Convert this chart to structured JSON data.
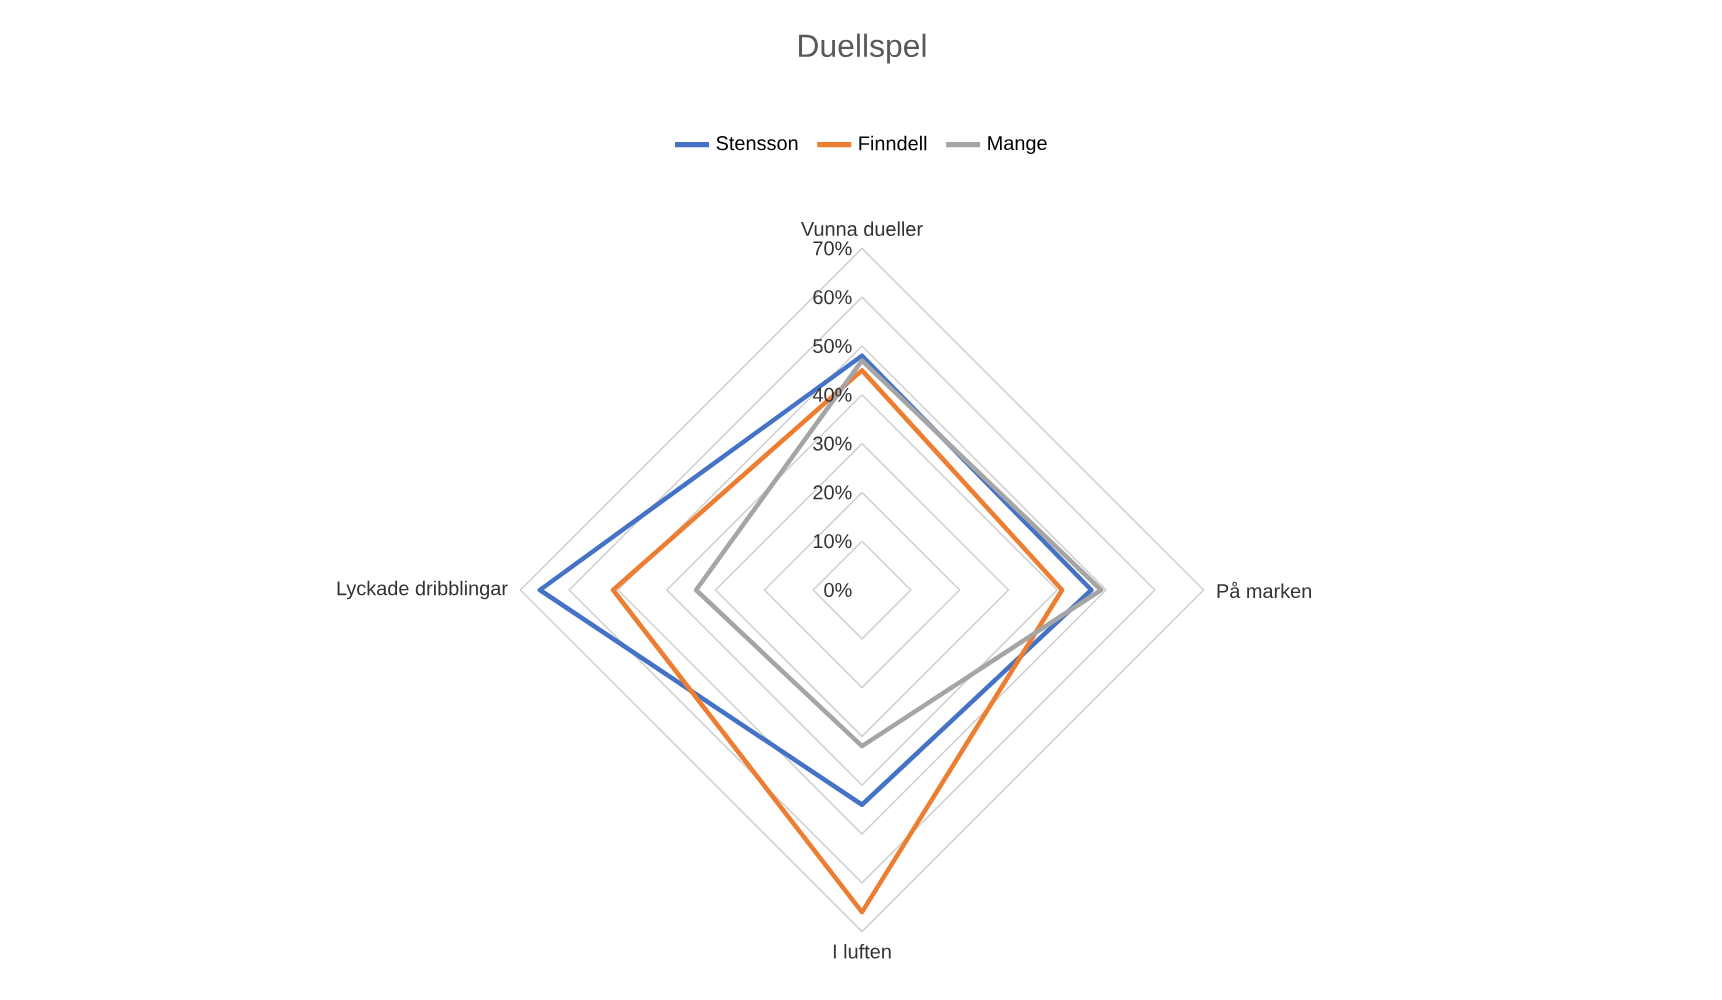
{
  "chart_data": {
    "type": "radar",
    "title": "Duellspel",
    "categories": [
      "Vunna dueller",
      "På marken",
      "I luften",
      "Lyckade dribblingar"
    ],
    "series": [
      {
        "name": "Stensson",
        "color": "#4472c4",
        "values": [
          48,
          47,
          44,
          66
        ]
      },
      {
        "name": "Finndell",
        "color": "#ed7d31",
        "values": [
          45,
          41,
          66,
          51
        ]
      },
      {
        "name": "Mange",
        "color": "#a5a5a5",
        "values": [
          47,
          49,
          32,
          34
        ]
      }
    ],
    "ylim": [
      0,
      70
    ],
    "yticks": [
      {
        "value": 0,
        "label": "0%"
      },
      {
        "value": 10,
        "label": "10%"
      },
      {
        "value": 20,
        "label": "20%"
      },
      {
        "value": 30,
        "label": "30%"
      },
      {
        "value": 40,
        "label": "40%"
      },
      {
        "value": 50,
        "label": "50%"
      },
      {
        "value": 60,
        "label": "60%"
      },
      {
        "value": 70,
        "label": "70%"
      }
    ],
    "grid": true,
    "legend": "top",
    "marker": "none",
    "line_style": "solid"
  }
}
